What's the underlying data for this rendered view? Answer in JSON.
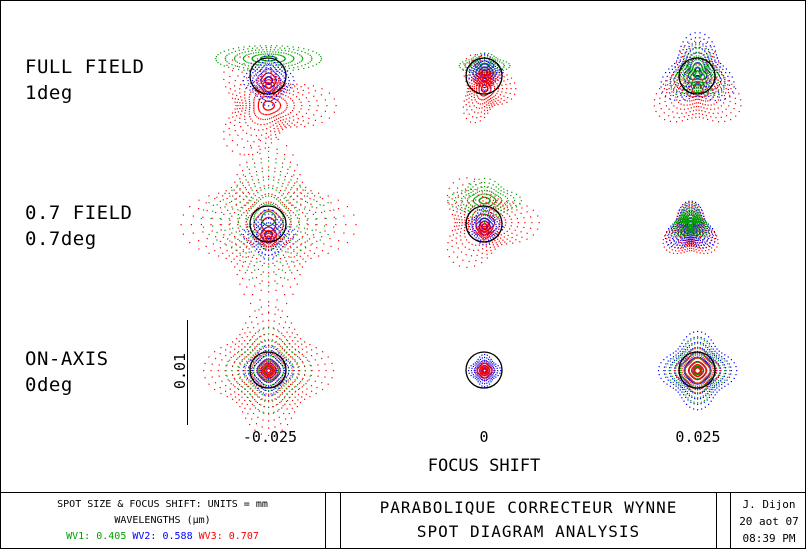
{
  "rows": [
    {
      "label": "FULL FIELD",
      "angle": "1deg"
    },
    {
      "label": "0.7 FIELD",
      "angle": "0.7deg"
    },
    {
      "label": "ON-AXIS",
      "angle": "0deg"
    }
  ],
  "columns": [
    "-0.025",
    "0",
    "0.025"
  ],
  "x_axis_label": "FOCUS SHIFT",
  "scale_label": "0.01",
  "info": {
    "units_line": "SPOT SIZE & FOCUS SHIFT: UNITS = mm",
    "wavelengths_line": "WAVELENGTHS (µm)",
    "wavelengths": [
      {
        "name": "WV1:",
        "value": "0.405",
        "color": "#00a000"
      },
      {
        "name": "WV2:",
        "value": "0.588",
        "color": "#0000ff"
      },
      {
        "name": "WV3:",
        "value": "0.707",
        "color": "#ff0000"
      }
    ],
    "title_line1": "PARABOLIQUE CORRECTEUR WYNNE",
    "title_line2": "SPOT DIAGRAM ANALYSIS",
    "author": "J. Dijon",
    "date": "20 aot 07",
    "time": "08:39 PM"
  },
  "colors": {
    "wv1": "#00a000",
    "wv2": "#0000ff",
    "wv3": "#ff0000",
    "circle": "#000000"
  }
}
